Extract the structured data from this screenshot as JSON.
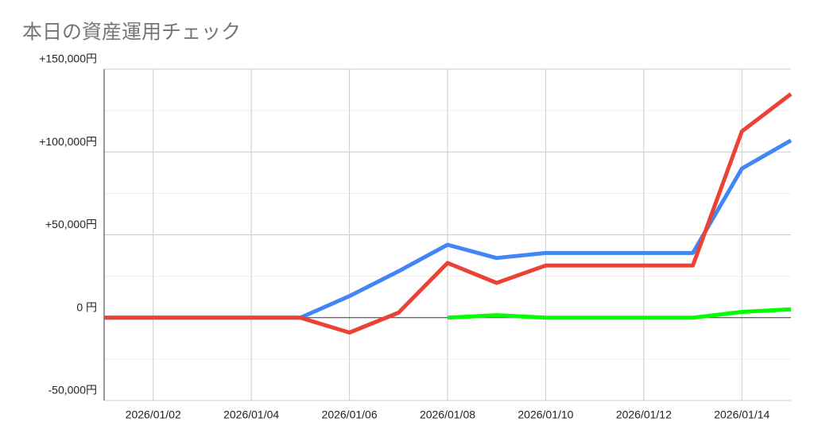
{
  "chart_data": {
    "type": "line",
    "title": "本日の資産運用チェック",
    "categories": [
      null,
      "2026/01/02",
      null,
      "2026/01/04",
      null,
      "2026/01/06",
      null,
      "2026/01/08",
      null,
      "2026/01/10",
      null,
      "2026/01/12",
      null,
      "2026/01/14",
      null
    ],
    "series": [
      {
        "color": "#4285f4",
        "values": [
          0,
          0,
          0,
          0,
          0,
          13000,
          28000,
          44000,
          36000,
          39000,
          39000,
          39000,
          39000,
          90000,
          107000
        ]
      },
      {
        "color": "#ea4335",
        "values": [
          0,
          0,
          0,
          0,
          0,
          -9000,
          3000,
          33000,
          21000,
          31500,
          31500,
          31500,
          31500,
          112500,
          135000
        ]
      },
      {
        "color": "#00ff00",
        "values": [
          null,
          null,
          null,
          null,
          null,
          null,
          null,
          0,
          1500,
          0,
          0,
          0,
          0,
          3500,
          5000
        ]
      }
    ],
    "ylim": [
      -50000,
      150000
    ],
    "yticks": [
      {
        "value": -50000,
        "label": "-50,000円"
      },
      {
        "value": 0,
        "label": "0 円"
      },
      {
        "value": 50000,
        "label": "+50,000円"
      },
      {
        "value": 100000,
        "label": "+100,000円"
      },
      {
        "value": 150000,
        "label": "+150,000円"
      }
    ],
    "minor_yticks": [
      -25000,
      25000,
      75000,
      125000
    ],
    "grid": true
  }
}
